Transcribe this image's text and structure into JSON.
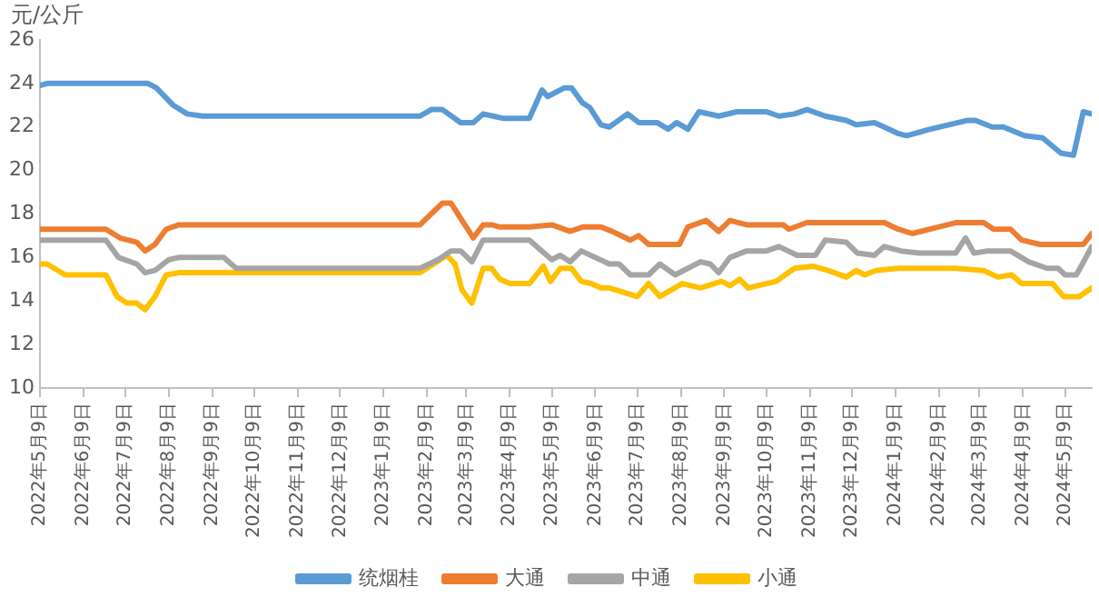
{
  "chart_data": {
    "type": "line",
    "ylabel": "元/公斤",
    "xlim": [
      "2022-05-09",
      "2024-05-28"
    ],
    "ylim": [
      10,
      26
    ],
    "yticks": [
      10,
      12,
      14,
      16,
      18,
      20,
      22,
      24,
      26
    ],
    "xticks": [
      {
        "value": "2022-05-09",
        "label": "2022年5月9日"
      },
      {
        "value": "2022-06-09",
        "label": "2022年6月9日"
      },
      {
        "value": "2022-07-09",
        "label": "2022年7月9日"
      },
      {
        "value": "2022-08-09",
        "label": "2022年8月9日"
      },
      {
        "value": "2022-09-09",
        "label": "2022年9月9日"
      },
      {
        "value": "2022-10-09",
        "label": "2022年10月9日"
      },
      {
        "value": "2022-11-09",
        "label": "2022年11月9日"
      },
      {
        "value": "2022-12-09",
        "label": "2022年12月9日"
      },
      {
        "value": "2023-01-09",
        "label": "2023年1月9日"
      },
      {
        "value": "2023-02-09",
        "label": "2023年2月9日"
      },
      {
        "value": "2023-03-09",
        "label": "2023年3月9日"
      },
      {
        "value": "2023-04-09",
        "label": "2023年4月9日"
      },
      {
        "value": "2023-05-09",
        "label": "2023年5月9日"
      },
      {
        "value": "2023-06-09",
        "label": "2023年6月9日"
      },
      {
        "value": "2023-07-09",
        "label": "2023年7月9日"
      },
      {
        "value": "2023-08-09",
        "label": "2023年8月9日"
      },
      {
        "value": "2023-09-09",
        "label": "2023年9月9日"
      },
      {
        "value": "2023-10-09",
        "label": "2023年10月9日"
      },
      {
        "value": "2023-11-09",
        "label": "2023年11月9日"
      },
      {
        "value": "2023-12-09",
        "label": "2023年12月9日"
      },
      {
        "value": "2024-01-09",
        "label": "2024年1月9日"
      },
      {
        "value": "2024-02-09",
        "label": "2024年2月9日"
      },
      {
        "value": "2024-03-09",
        "label": "2024年3月9日"
      },
      {
        "value": "2024-04-09",
        "label": "2024年4月9日"
      },
      {
        "value": "2024-05-09",
        "label": "2024年5月9日"
      }
    ],
    "grid": false,
    "legend": "bottom",
    "marker": "none",
    "line_style": "solid",
    "series": [
      {
        "name": "统烟桂",
        "color": "#5b9bd5",
        "x": [
          "2022-05-09",
          "2022-05-14",
          "2022-07-25",
          "2022-07-31",
          "2022-08-12",
          "2022-08-22",
          "2022-09-02",
          "2023-02-04",
          "2023-02-12",
          "2023-02-20",
          "2023-03-05",
          "2023-03-14",
          "2023-03-21",
          "2023-03-28",
          "2023-04-04",
          "2023-04-23",
          "2023-05-02",
          "2023-05-06",
          "2023-05-18",
          "2023-05-23",
          "2023-05-31",
          "2023-06-05",
          "2023-06-13",
          "2023-06-19",
          "2023-07-02",
          "2023-07-10",
          "2023-07-23",
          "2023-07-31",
          "2023-08-06",
          "2023-08-14",
          "2023-08-22",
          "2023-09-05",
          "2023-09-18",
          "2023-10-09",
          "2023-10-18",
          "2023-10-29",
          "2023-11-07",
          "2023-11-20",
          "2023-12-05",
          "2023-12-12",
          "2023-12-25",
          "2024-01-01",
          "2024-01-11",
          "2024-01-17",
          "2024-02-03",
          "2024-02-29",
          "2024-03-06",
          "2024-03-18",
          "2024-03-26",
          "2024-04-10",
          "2024-04-23",
          "2024-05-06",
          "2024-05-15",
          "2024-05-22",
          "2024-05-28"
        ],
        "values": [
          23.9,
          24.0,
          24.0,
          23.8,
          23.0,
          22.6,
          22.5,
          22.5,
          22.8,
          22.8,
          22.2,
          22.2,
          22.6,
          22.5,
          22.4,
          22.4,
          23.7,
          23.4,
          23.8,
          23.8,
          23.1,
          22.9,
          22.1,
          22.0,
          22.6,
          22.2,
          22.2,
          21.9,
          22.2,
          21.9,
          22.7,
          22.5,
          22.7,
          22.7,
          22.5,
          22.6,
          22.8,
          22.5,
          22.3,
          22.1,
          22.2,
          22.0,
          21.7,
          21.6,
          21.9,
          22.3,
          22.3,
          22.0,
          22.0,
          21.6,
          21.5,
          20.8,
          20.7,
          22.7,
          22.6
        ]
      },
      {
        "name": "大通",
        "color": "#ed7d31",
        "x": [
          "2022-05-09",
          "2022-06-25",
          "2022-07-05",
          "2022-07-17",
          "2022-07-23",
          "2022-07-30",
          "2022-08-07",
          "2022-08-16",
          "2023-02-04",
          "2023-02-20",
          "2023-02-26",
          "2023-03-14",
          "2023-03-21",
          "2023-03-27",
          "2023-04-02",
          "2023-04-23",
          "2023-05-09",
          "2023-05-22",
          "2023-05-31",
          "2023-06-13",
          "2023-06-21",
          "2023-07-04",
          "2023-07-10",
          "2023-07-17",
          "2023-07-30",
          "2023-08-08",
          "2023-08-14",
          "2023-08-27",
          "2023-09-05",
          "2023-09-13",
          "2023-09-25",
          "2023-10-21",
          "2023-10-25",
          "2023-11-07",
          "2024-01-01",
          "2024-01-11",
          "2024-01-21",
          "2024-02-21",
          "2024-03-12",
          "2024-03-19",
          "2024-03-31",
          "2024-04-08",
          "2024-04-21",
          "2024-05-22",
          "2024-05-28"
        ],
        "values": [
          17.3,
          17.3,
          16.9,
          16.7,
          16.3,
          16.6,
          17.3,
          17.5,
          17.5,
          18.5,
          18.5,
          16.9,
          17.5,
          17.5,
          17.4,
          17.4,
          17.5,
          17.2,
          17.4,
          17.4,
          17.2,
          16.8,
          17.0,
          16.6,
          16.6,
          16.6,
          17.4,
          17.7,
          17.2,
          17.7,
          17.5,
          17.5,
          17.3,
          17.6,
          17.6,
          17.3,
          17.1,
          17.6,
          17.6,
          17.3,
          17.3,
          16.8,
          16.6,
          16.6,
          17.1
        ]
      },
      {
        "name": "中通",
        "color": "#a5a5a5",
        "x": [
          "2022-05-09",
          "2022-06-25",
          "2022-07-04",
          "2022-07-17",
          "2022-07-23",
          "2022-07-30",
          "2022-08-09",
          "2022-08-16",
          "2022-09-17",
          "2022-09-26",
          "2023-02-04",
          "2023-02-17",
          "2023-02-26",
          "2023-03-05",
          "2023-03-13",
          "2023-03-21",
          "2023-04-23",
          "2023-04-30",
          "2023-05-09",
          "2023-05-15",
          "2023-05-22",
          "2023-05-30",
          "2023-06-19",
          "2023-06-26",
          "2023-07-04",
          "2023-07-17",
          "2023-07-25",
          "2023-08-05",
          "2023-08-23",
          "2023-08-30",
          "2023-09-05",
          "2023-09-13",
          "2023-09-25",
          "2023-10-09",
          "2023-10-18",
          "2023-10-31",
          "2023-11-13",
          "2023-11-20",
          "2023-12-05",
          "2023-12-13",
          "2023-12-25",
          "2024-01-01",
          "2024-01-13",
          "2024-01-26",
          "2024-02-21",
          "2024-02-28",
          "2024-03-05",
          "2024-03-15",
          "2024-03-31",
          "2024-04-13",
          "2024-04-26",
          "2024-05-04",
          "2024-05-09",
          "2024-05-17",
          "2024-05-23",
          "2024-05-28"
        ],
        "values": [
          16.8,
          16.8,
          16.0,
          15.7,
          15.3,
          15.4,
          15.9,
          16.0,
          16.0,
          15.5,
          15.5,
          15.9,
          16.3,
          16.3,
          15.8,
          16.8,
          16.8,
          16.4,
          15.9,
          16.1,
          15.8,
          16.3,
          15.7,
          15.7,
          15.2,
          15.2,
          15.7,
          15.2,
          15.8,
          15.7,
          15.3,
          16.0,
          16.3,
          16.3,
          16.5,
          16.1,
          16.1,
          16.8,
          16.7,
          16.2,
          16.1,
          16.5,
          16.3,
          16.2,
          16.2,
          16.9,
          16.2,
          16.3,
          16.3,
          15.8,
          15.5,
          15.5,
          15.2,
          15.2,
          15.9,
          16.5
        ]
      },
      {
        "name": "小通",
        "color": "#ffc000",
        "x": [
          "2022-05-09",
          "2022-05-14",
          "2022-05-27",
          "2022-06-25",
          "2022-07-03",
          "2022-07-10",
          "2022-07-17",
          "2022-07-23",
          "2022-07-30",
          "2022-08-07",
          "2022-08-16",
          "2023-02-04",
          "2023-02-16",
          "2023-02-23",
          "2023-03-01",
          "2023-03-06",
          "2023-03-13",
          "2023-03-21",
          "2023-03-27",
          "2023-04-02",
          "2023-04-09",
          "2023-04-23",
          "2023-05-03",
          "2023-05-08",
          "2023-05-15",
          "2023-05-23",
          "2023-05-30",
          "2023-06-06",
          "2023-06-13",
          "2023-06-19",
          "2023-07-09",
          "2023-07-17",
          "2023-07-25",
          "2023-08-10",
          "2023-08-23",
          "2023-09-07",
          "2023-09-13",
          "2023-09-20",
          "2023-09-26",
          "2023-10-16",
          "2023-10-29",
          "2023-11-11",
          "2023-11-22",
          "2023-12-05",
          "2023-12-12",
          "2023-12-18",
          "2023-12-26",
          "2024-01-11",
          "2024-02-21",
          "2024-03-12",
          "2024-03-22",
          "2024-04-01",
          "2024-04-08",
          "2024-04-26",
          "2024-04-30",
          "2024-05-08",
          "2024-05-19",
          "2024-05-28"
        ],
        "values": [
          15.7,
          15.7,
          15.2,
          15.2,
          14.2,
          13.9,
          13.9,
          13.6,
          14.2,
          15.2,
          15.3,
          15.3,
          15.8,
          16.1,
          15.7,
          14.5,
          13.9,
          15.5,
          15.5,
          15.0,
          14.8,
          14.8,
          15.6,
          14.9,
          15.5,
          15.5,
          14.9,
          14.8,
          14.6,
          14.6,
          14.2,
          14.8,
          14.2,
          14.8,
          14.6,
          14.9,
          14.7,
          15.0,
          14.6,
          14.9,
          15.5,
          15.6,
          15.4,
          15.1,
          15.4,
          15.2,
          15.4,
          15.5,
          15.5,
          15.4,
          15.1,
          15.2,
          14.8,
          14.8,
          14.8,
          14.2,
          14.2,
          14.6
        ]
      }
    ]
  }
}
